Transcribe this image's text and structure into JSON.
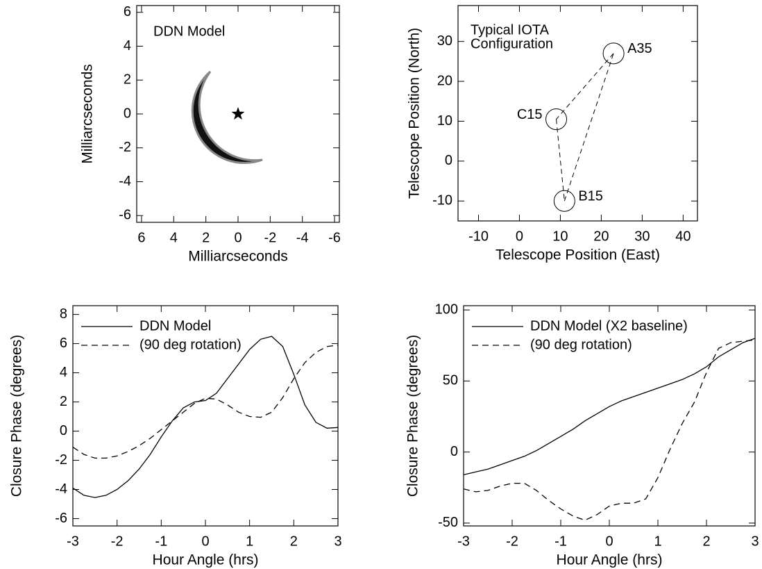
{
  "chart_data": [
    {
      "type": "image",
      "annotation": "DDN Model",
      "xlabel": "Milliarcseconds",
      "ylabel": "Milliarcseconds",
      "xlim": [
        6.3,
        -6.3
      ],
      "xticks": [
        6,
        4,
        2,
        0,
        -2,
        -4,
        -6
      ],
      "ylim": [
        -6.4,
        6.4
      ],
      "yticks": [
        -6,
        -4,
        -2,
        0,
        2,
        4,
        6
      ],
      "x": [
        0
      ],
      "values": [
        0
      ],
      "marker": "star"
    },
    {
      "type": "scatter",
      "annotation": [
        "Typical IOTA",
        "Configuration"
      ],
      "xlabel": "Telescope Position (East)",
      "ylabel": "Telescope Position (North)",
      "xlim": [
        -15,
        43.5
      ],
      "xticks": [
        -10,
        0,
        10,
        20,
        30,
        40
      ],
      "ylim": [
        -15,
        39
      ],
      "yticks": [
        -10,
        0,
        10,
        20,
        30
      ],
      "x": [
        23,
        9,
        11
      ],
      "values": [
        27,
        10.5,
        -10
      ],
      "labels": [
        "A35",
        "C15",
        "B15"
      ]
    },
    {
      "type": "line",
      "xlabel": "Hour Angle (hrs)",
      "ylabel": "Closure Phase (degrees)",
      "legend": "upper left",
      "xlim": [
        -3,
        3
      ],
      "xticks": [
        -3,
        -2,
        -1,
        0,
        1,
        2,
        3
      ],
      "ylim": [
        -6.5,
        8.6
      ],
      "yticks": [
        -6,
        -4,
        -2,
        0,
        2,
        4,
        6,
        8
      ],
      "x": [
        -3,
        -2.75,
        -2.5,
        -2.25,
        -2,
        -1.75,
        -1.5,
        -1.25,
        -1,
        -0.75,
        -0.5,
        -0.25,
        0,
        0.25,
        0.5,
        0.75,
        1,
        1.25,
        1.5,
        1.75,
        2,
        2.25,
        2.5,
        2.75,
        3
      ],
      "series": [
        {
          "name": "DDN Model",
          "color": "#000000",
          "dash": "solid",
          "values": [
            -3.9,
            -4.4,
            -4.55,
            -4.4,
            -4.0,
            -3.4,
            -2.6,
            -1.6,
            -0.4,
            0.7,
            1.6,
            2.0,
            2.1,
            2.6,
            3.6,
            4.6,
            5.6,
            6.3,
            6.5,
            5.8,
            3.9,
            1.8,
            0.6,
            0.2,
            0.25
          ]
        },
        {
          "name": "(90 deg rotation)",
          "color": "#000000",
          "dash": "dashed",
          "values": [
            -1.1,
            -1.6,
            -1.85,
            -1.85,
            -1.7,
            -1.4,
            -1.0,
            -0.5,
            0.1,
            0.7,
            1.3,
            1.9,
            2.25,
            2.2,
            1.8,
            1.3,
            1.0,
            0.95,
            1.3,
            2.3,
            3.6,
            4.7,
            5.4,
            5.8,
            5.9
          ]
        }
      ]
    },
    {
      "type": "line",
      "xlabel": "Hour Angle (hrs)",
      "ylabel": "Closure Phase (degrees)",
      "legend": "upper left",
      "xlim": [
        -3,
        3
      ],
      "xticks": [
        -3,
        -2,
        -1,
        0,
        1,
        2,
        3
      ],
      "ylim": [
        -52,
        103
      ],
      "yticks": [
        -50,
        0,
        50,
        100
      ],
      "x": [
        -3,
        -2.75,
        -2.5,
        -2.25,
        -2,
        -1.75,
        -1.5,
        -1.25,
        -1,
        -0.75,
        -0.5,
        -0.25,
        0,
        0.25,
        0.5,
        0.75,
        1,
        1.25,
        1.5,
        1.75,
        2,
        2.25,
        2.5,
        2.75,
        3
      ],
      "series": [
        {
          "name": "DDN Model (X2 baseline)",
          "color": "#000000",
          "dash": "solid",
          "values": [
            -16,
            -14,
            -12,
            -9,
            -6,
            -3,
            1,
            6,
            11,
            16,
            22,
            27,
            32,
            36,
            39,
            42,
            45,
            48,
            51,
            55,
            60,
            67,
            72,
            77,
            80
          ]
        },
        {
          "name": "(90 deg rotation)",
          "color": "#000000",
          "dash": "dashed",
          "values": [
            -26,
            -28,
            -27,
            -24,
            -22,
            -22,
            -27,
            -34,
            -40,
            -45,
            -48,
            -44,
            -38,
            -36,
            -36,
            -33,
            -18,
            2,
            20,
            35,
            56,
            73,
            77,
            78,
            79
          ]
        }
      ]
    }
  ]
}
